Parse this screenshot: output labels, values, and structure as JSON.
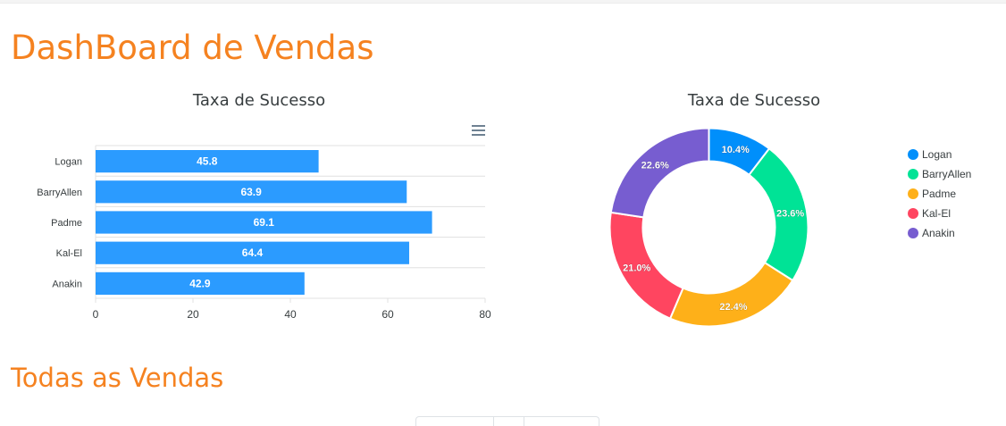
{
  "page": {
    "title": "DashBoard de Vendas",
    "section_title": "Todas as Vendas"
  },
  "bar_chart": {
    "title": "Taxa de Sucesso",
    "menu_icon": "hamburger-menu-icon"
  },
  "pie_chart": {
    "title": "Taxa de Sucesso"
  },
  "chart_data": [
    {
      "type": "bar",
      "orientation": "horizontal",
      "title": "Taxa de Sucesso",
      "categories": [
        "Logan",
        "BarryAllen",
        "Padme",
        "Kal-El",
        "Anakin"
      ],
      "values": [
        45.8,
        63.9,
        69.1,
        64.4,
        42.9
      ],
      "xlim": [
        0,
        80
      ],
      "x_ticks": [
        0,
        20,
        40,
        60,
        80
      ],
      "color": "#2b9bff",
      "data_labels": true,
      "grid": true,
      "legend": "none"
    },
    {
      "type": "pie",
      "variant": "donut",
      "title": "Taxa de Sucesso",
      "labels": [
        "Logan",
        "BarryAllen",
        "Padme",
        "Kal-El",
        "Anakin"
      ],
      "values": [
        10.4,
        23.6,
        22.4,
        21.0,
        22.6
      ],
      "value_labels": [
        "10.4%",
        "23.6%",
        "22.4%",
        "21.0%",
        "22.6%"
      ],
      "colors": [
        "#008ffb",
        "#00e396",
        "#feb019",
        "#ff4560",
        "#775dd0"
      ],
      "legend": "right"
    }
  ]
}
